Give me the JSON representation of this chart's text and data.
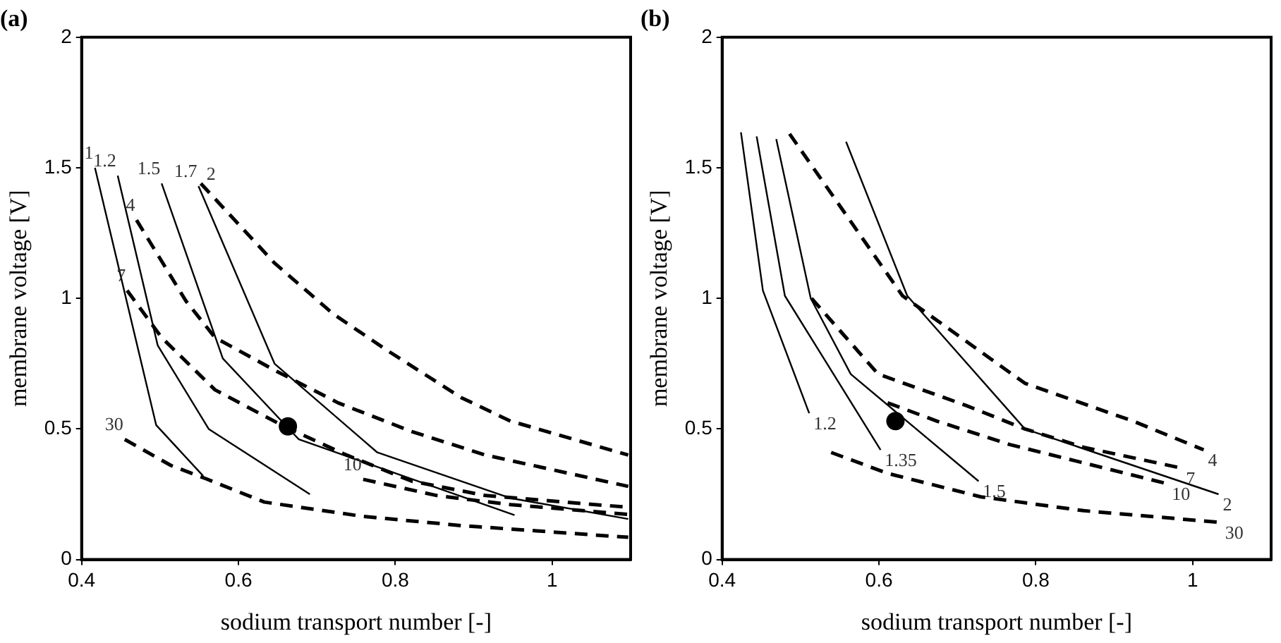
{
  "chart_data": [
    {
      "type": "line",
      "title": "(a)",
      "xlabel": "sodium transport number [-]",
      "ylabel": "membrane voltage [V]",
      "xlim": [
        0.4,
        1.1
      ],
      "xticks": [
        0.4,
        0.6,
        0.8,
        1
      ],
      "ylim": [
        0,
        2
      ],
      "yticks": [
        0,
        0.5,
        1,
        1.5,
        2
      ],
      "grid": false,
      "legend": false,
      "series": [
        {
          "color": "#000000",
          "line_style": "solid",
          "marker": "none",
          "x": [
            0.417,
            0.495,
            0.555
          ],
          "values": [
            1.5,
            0.515,
            0.32
          ]
        },
        {
          "color": "#000000",
          "line_style": "solid",
          "marker": "none",
          "x": [
            0.446,
            0.497,
            0.562,
            0.691
          ],
          "values": [
            1.47,
            0.82,
            0.5,
            0.25
          ]
        },
        {
          "color": "#000000",
          "line_style": "solid",
          "marker": "none",
          "x": [
            0.502,
            0.58,
            0.677,
            0.952
          ],
          "values": [
            1.44,
            0.77,
            0.46,
            0.17
          ]
        },
        {
          "color": "#000000",
          "line_style": "solid",
          "marker": "none",
          "x": [
            0.549,
            0.646,
            0.777,
            0.947,
            1.097
          ],
          "values": [
            1.43,
            0.75,
            0.41,
            0.235,
            0.155
          ]
        },
        {
          "color": "#000000",
          "line_style": "dashed",
          "marker": "none",
          "x": [
            0.552,
            0.646,
            0.721,
            0.79,
            0.884,
            0.947,
            1.097
          ],
          "values": [
            1.44,
            1.135,
            0.94,
            0.8,
            0.62,
            0.53,
            0.4
          ]
        },
        {
          "color": "#000000",
          "line_style": "dashed",
          "marker": "none",
          "x": [
            0.47,
            0.533,
            0.57,
            0.646,
            0.727,
            0.821,
            0.915,
            1.097
          ],
          "values": [
            1.3,
            0.99,
            0.85,
            0.725,
            0.6,
            0.49,
            0.4,
            0.28
          ]
        },
        {
          "color": "#000000",
          "line_style": "dashed",
          "marker": "none",
          "x": [
            0.458,
            0.502,
            0.57,
            0.658,
            0.734,
            0.821,
            0.915,
            1.097
          ],
          "values": [
            1.03,
            0.85,
            0.65,
            0.51,
            0.405,
            0.3,
            0.245,
            0.2
          ]
        },
        {
          "color": "#000000",
          "line_style": "dashed",
          "marker": "none",
          "x": [
            0.759,
            0.853,
            0.947,
            1.097
          ],
          "values": [
            0.307,
            0.245,
            0.21,
            0.173
          ]
        },
        {
          "color": "#000000",
          "line_style": "dashed",
          "marker": "none",
          "x": [
            0.455,
            0.514,
            0.558,
            0.633,
            0.759,
            0.884,
            1.097
          ],
          "values": [
            0.46,
            0.36,
            0.31,
            0.22,
            0.165,
            0.13,
            0.085
          ]
        },
        {
          "type": "scatter",
          "color": "#000000",
          "marker": "circle",
          "x": [
            0.663
          ],
          "values": [
            0.51
          ]
        }
      ],
      "annotations": [
        {
          "text": "1",
          "x": 0.417,
          "y": 1.5
        },
        {
          "text": "1.2",
          "x": 0.446,
          "y": 1.47
        },
        {
          "text": "1.5",
          "x": 0.502,
          "y": 1.44
        },
        {
          "text": "1.7",
          "x": 0.549,
          "y": 1.43
        },
        {
          "text": "2",
          "x": 0.552,
          "y": 1.44
        },
        {
          "text": "4",
          "x": 0.47,
          "y": 1.3
        },
        {
          "text": "7",
          "x": 0.458,
          "y": 1.03
        },
        {
          "text": "30",
          "x": 0.455,
          "y": 0.46
        },
        {
          "text": "10",
          "x": 0.759,
          "y": 0.307
        }
      ]
    },
    {
      "type": "line",
      "title": "(b)",
      "xlabel": "sodium transport number [-]",
      "ylabel": "membrane voltage [V]",
      "xlim": [
        0.4,
        1.1
      ],
      "xticks": [
        0.4,
        0.6,
        0.8,
        1
      ],
      "ylim": [
        0,
        2
      ],
      "yticks": [
        0,
        0.5,
        1,
        1.5,
        2
      ],
      "grid": false,
      "legend": false,
      "series": [
        {
          "color": "#000000",
          "line_style": "solid",
          "marker": "none",
          "x": [
            0.424,
            0.452,
            0.511
          ],
          "values": [
            1.636,
            1.03,
            0.56
          ]
        },
        {
          "color": "#000000",
          "line_style": "solid",
          "marker": "none",
          "x": [
            0.444,
            0.48,
            0.602
          ],
          "values": [
            1.62,
            1.01,
            0.42
          ]
        },
        {
          "color": "#000000",
          "line_style": "solid",
          "marker": "none",
          "x": [
            0.469,
            0.513,
            0.564,
            0.727
          ],
          "values": [
            1.61,
            1.0,
            0.71,
            0.3
          ]
        },
        {
          "color": "#000000",
          "line_style": "solid",
          "marker": "none",
          "x": [
            0.558,
            0.636,
            0.786,
            1.033
          ],
          "values": [
            1.6,
            1.01,
            0.5,
            0.25
          ]
        },
        {
          "color": "#000000",
          "line_style": "dashed",
          "marker": "none",
          "x": [
            0.486,
            0.63,
            0.786,
            0.924,
            1.014
          ],
          "values": [
            1.63,
            1.01,
            0.675,
            0.53,
            0.42
          ]
        },
        {
          "color": "#000000",
          "line_style": "dashed",
          "marker": "none",
          "x": [
            0.514,
            0.599,
            0.711,
            0.786,
            0.861,
            0.986
          ],
          "values": [
            1.0,
            0.71,
            0.59,
            0.5,
            0.43,
            0.35
          ]
        },
        {
          "color": "#000000",
          "line_style": "dashed",
          "marker": "none",
          "x": [
            0.611,
            0.674,
            0.767,
            0.861,
            0.968
          ],
          "values": [
            0.6,
            0.53,
            0.44,
            0.37,
            0.29
          ]
        },
        {
          "color": "#000000",
          "line_style": "dashed",
          "marker": "none",
          "x": [
            0.539,
            0.611,
            0.73,
            0.861,
            1.036
          ],
          "values": [
            0.41,
            0.33,
            0.24,
            0.187,
            0.142
          ]
        },
        {
          "type": "scatter",
          "color": "#000000",
          "marker": "circle",
          "x": [
            0.621
          ],
          "values": [
            0.53
          ]
        }
      ],
      "annotations": [
        {
          "text": "1.2",
          "x": 0.511,
          "y": 0.56
        },
        {
          "text": "1.35",
          "x": 0.602,
          "y": 0.42
        },
        {
          "text": "1.5",
          "x": 0.727,
          "y": 0.3
        },
        {
          "text": "2",
          "x": 1.033,
          "y": 0.25
        },
        {
          "text": "4",
          "x": 1.014,
          "y": 0.42
        },
        {
          "text": "7",
          "x": 0.986,
          "y": 0.35
        },
        {
          "text": "10",
          "x": 0.968,
          "y": 0.29
        },
        {
          "text": "30",
          "x": 1.036,
          "y": 0.142
        }
      ]
    }
  ]
}
